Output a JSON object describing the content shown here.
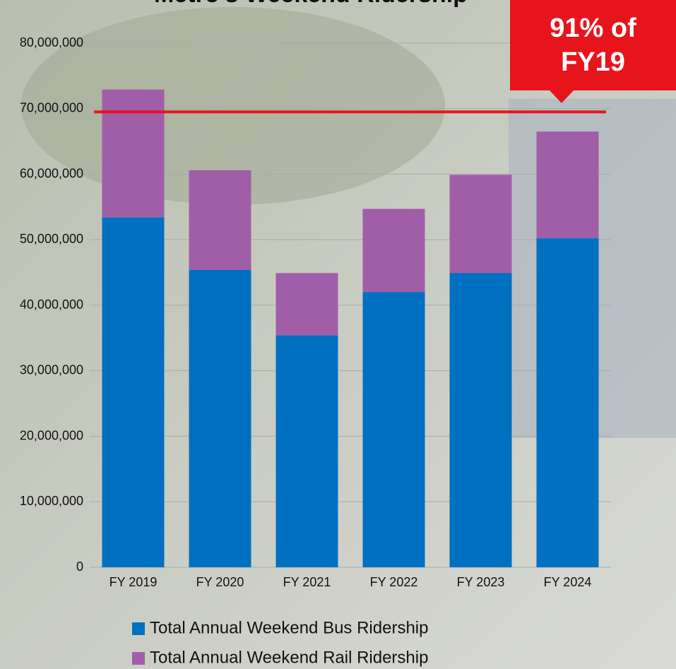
{
  "chart_data": {
    "type": "stacked_bar",
    "title": "Metro's Weekend Ridership",
    "categories": [
      "FY 2019",
      "FY 2020",
      "FY 2021",
      "FY 2022",
      "FY 2023",
      "FY 2024"
    ],
    "series": [
      {
        "name": "Total Annual Weekend Bus Ridership",
        "color": "#0070c0",
        "values": [
          53400000,
          45400000,
          35400000,
          42000000,
          44900000,
          50200000
        ]
      },
      {
        "name": "Total Annual Weekend Rail Ridership",
        "color": "#a05ea8",
        "values": [
          19500000,
          15200000,
          9500000,
          12700000,
          15000000,
          16300000
        ]
      }
    ],
    "ylim": [
      0,
      80000000
    ],
    "yticks": [
      0,
      {
        "value": 10000000,
        "label": "10,000,000"
      },
      {
        "value": 20000000,
        "label": "20,000,000"
      },
      {
        "value": 30000000,
        "label": "30,000,000"
      },
      {
        "value": 40000000,
        "label": "40,000,000"
      },
      {
        "value": 50000000,
        "label": "50,000,000"
      },
      {
        "value": 60000000,
        "label": "60,000,000"
      },
      {
        "value": 70000000,
        "label": "70,000,000"
      },
      {
        "value": 80000000,
        "label": "80,000,000"
      }
    ],
    "grid": true,
    "reference_line": {
      "value": 69500000,
      "color": "#e8141c"
    },
    "annotation": "91% of FY19",
    "legend": "bottom"
  }
}
